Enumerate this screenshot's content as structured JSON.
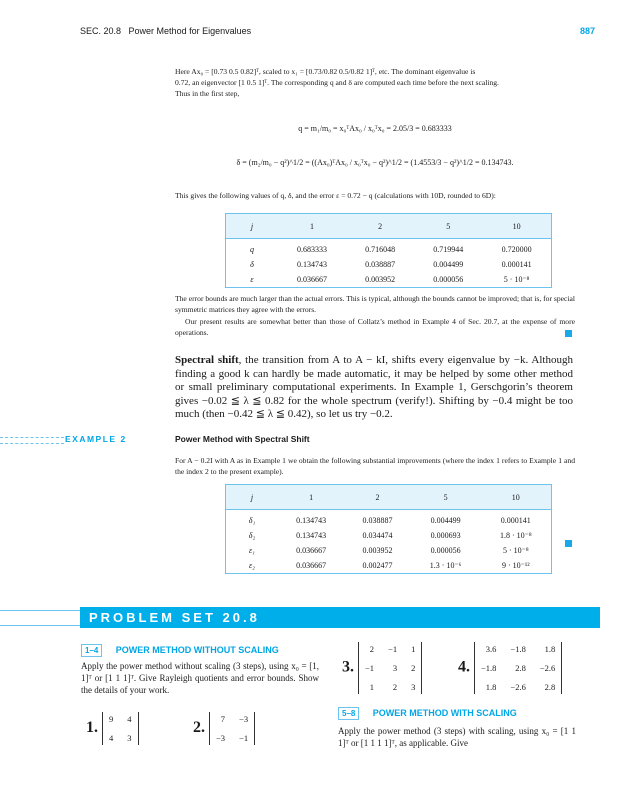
{
  "header": {
    "section": "SEC. 20.8",
    "title": "Power Method for Eigenvalues",
    "page": "887"
  },
  "intro": {
    "line1": "Here Ax₀ = [0.73   0.5   0.82]ᵀ, scaled to x₁ = [0.73/0.82   0.5/0.82   1]ᵀ, etc. The dominant eigenvalue is",
    "line2": "0.72, an eigenvector [1   0.5   1]ᵀ. The corresponding q and δ are computed each time before the next scaling.",
    "line3": "Thus in the first step,",
    "eq_q": "q = m₁/m₀ = x₀ᵀAx₀ / x₀ᵀx₀ = 2.05/3 = 0.683333",
    "eq_delta": "δ = (m₂/m₀ − q²)^1/2 = ((Ax₀)ᵀAx₀ / x₀ᵀx₀ − q²)^1/2 = (1.4553/3 − q²)^1/2 = 0.134743.",
    "after": "This gives the following values of q, δ, and the error ε = 0.72 − q (calculations with 10D, rounded to 6D):"
  },
  "table1": {
    "headers": [
      "j",
      "1",
      "2",
      "5",
      "10"
    ],
    "rows": [
      [
        "q",
        "0.683333",
        "0.716048",
        "0.719944",
        "0.720000"
      ],
      [
        "δ",
        "0.134743",
        "0.038887",
        "0.004499",
        "0.000141"
      ],
      [
        "ε",
        "0.036667",
        "0.003952",
        "0.000056",
        "5 · 10⁻⁸"
      ]
    ]
  },
  "para1": "The error bounds are much larger than the actual errors. This is typical, although the bounds cannot be improved; that is, for special symmetric matrices they agree with the errors.",
  "para2": "Our present results are somewhat better than those of Collatz’s method in Example 4 of Sec. 20.7, at the expense of more operations.",
  "shift": {
    "bold": "Spectral shift",
    "text": ", the transition from A to A − kI, shifts every eigenvalue by −k. Although finding a good k can hardly be made automatic, it may be helped by some other method or small preliminary computational experiments. In Example 1, Gerschgorin’s theorem gives −0.02 ≦ λ ≦ 0.82 for the whole spectrum (verify!). Shifting by −0.4 might be too much (then −0.42 ≦ λ ≦ 0.42), so let us try −0.2."
  },
  "example2": {
    "label": "EXAMPLE 2",
    "title": "Power Method with Spectral Shift",
    "text": "For A − 0.2I with A as in Example 1 we obtain the following substantial improvements (where the index 1 refers to Example 1 and the index 2 to the present example)."
  },
  "table2": {
    "headers": [
      "j",
      "1",
      "2",
      "5",
      "10"
    ],
    "rows": [
      [
        "δ₁",
        "0.134743",
        "0.038887",
        "0.004499",
        "0.000141"
      ],
      [
        "δ₂",
        "0.134743",
        "0.034474",
        "0.000693",
        "1.8 · 10⁻⁸"
      ],
      [
        "ε₁",
        "0.036667",
        "0.003952",
        "0.000056",
        "5 · 10⁻⁸"
      ],
      [
        "ε₂",
        "0.036667",
        "0.002477",
        "1.3 · 10⁻⁶",
        "9 · 10⁻¹²"
      ]
    ]
  },
  "problem_set": {
    "title": "PROBLEM SET 20.8",
    "group1": {
      "range": "1–4",
      "title": "POWER METHOD WITHOUT SCALING",
      "text": "Apply the power method without scaling (3 steps), using x₀ = [1,   1]ᵀ or [1   1   1]ᵀ. Give Rayleigh quotients and error bounds. Show the details of your work."
    },
    "problems": [
      {
        "num": "1.",
        "matrix": [
          [
            "9",
            "4"
          ],
          [
            "4",
            "3"
          ]
        ]
      },
      {
        "num": "2.",
        "matrix": [
          [
            "7",
            "−3"
          ],
          [
            "−3",
            "−1"
          ]
        ]
      },
      {
        "num": "3.",
        "matrix": [
          [
            "2",
            "−1",
            "1"
          ],
          [
            "−1",
            "3",
            "2"
          ],
          [
            "1",
            "2",
            "3"
          ]
        ]
      },
      {
        "num": "4.",
        "matrix": [
          [
            "3.6",
            "−1.8",
            "1.8"
          ],
          [
            "−1.8",
            "2.8",
            "−2.6"
          ],
          [
            "1.8",
            "−2.6",
            "2.8"
          ]
        ]
      }
    ],
    "group2": {
      "range": "5–8",
      "title": "POWER METHOD WITH SCALING",
      "text": "Apply the power method (3 steps) with scaling, using x₀ = [1   1   1]ᵀ or [1   1   1   1]ᵀ, as applicable. Give"
    }
  },
  "colors": {
    "accent": "#00a6e6"
  }
}
